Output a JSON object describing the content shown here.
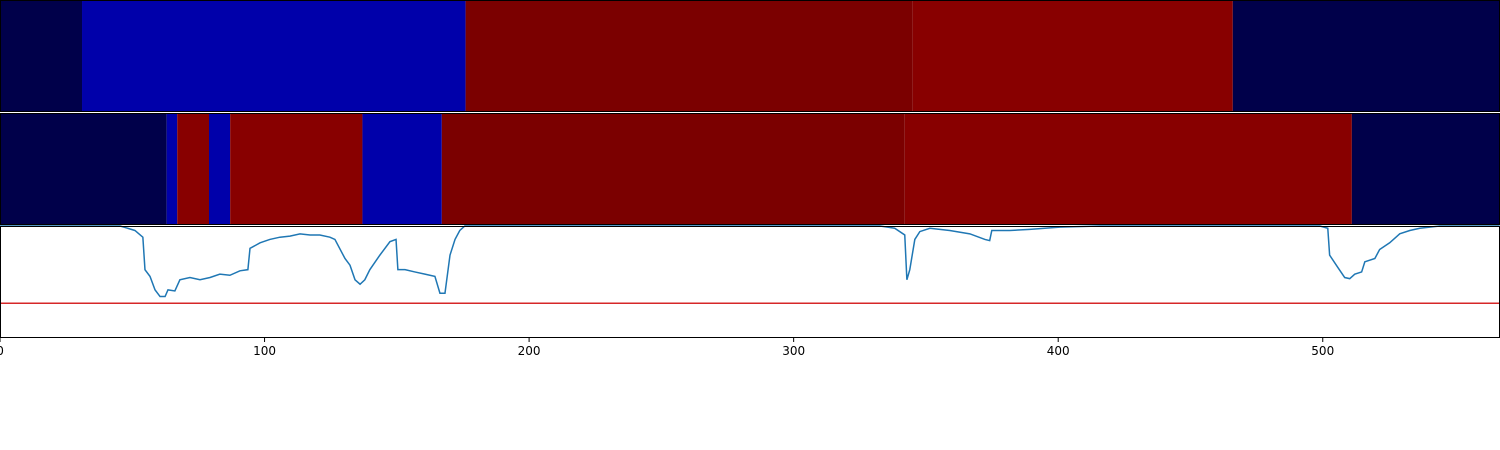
{
  "chart_data": [
    {
      "type": "segments",
      "xlim": [
        0,
        567
      ],
      "segments": [
        {
          "start": 0,
          "end": 31,
          "color": "#00004a"
        },
        {
          "start": 31,
          "end": 176,
          "color": "#0000aa"
        },
        {
          "start": 176,
          "end": 345,
          "color": "#7b0000"
        },
        {
          "start": 345,
          "end": 466,
          "color": "#880000"
        },
        {
          "start": 466,
          "end": 567,
          "color": "#00004a"
        }
      ]
    },
    {
      "type": "segments",
      "xlim": [
        0,
        567
      ],
      "segments": [
        {
          "start": 0,
          "end": 63,
          "color": "#00004a"
        },
        {
          "start": 63,
          "end": 67,
          "color": "#0000aa"
        },
        {
          "start": 67,
          "end": 79,
          "color": "#880000"
        },
        {
          "start": 79,
          "end": 87,
          "color": "#0000aa"
        },
        {
          "start": 87,
          "end": 137,
          "color": "#880000"
        },
        {
          "start": 137,
          "end": 167,
          "color": "#0000aa"
        },
        {
          "start": 167,
          "end": 342,
          "color": "#7b0000"
        },
        {
          "start": 342,
          "end": 511,
          "color": "#880000"
        },
        {
          "start": 511,
          "end": 567,
          "color": "#00004a"
        }
      ]
    },
    {
      "type": "line",
      "xlim": [
        0,
        567
      ],
      "ylim": [
        0,
        1
      ],
      "xticks": [
        0,
        100,
        200,
        300,
        400,
        500
      ],
      "threshold": 0.31,
      "threshold_color": "#d62728",
      "color": "#1f77b4",
      "x": [
        0,
        45.4,
        51,
        54,
        54.8,
        56.7,
        58.6,
        60.5,
        62.4,
        63.5,
        66.1,
        68,
        71.8,
        75.6,
        79.4,
        83.1,
        86.9,
        90.7,
        93.7,
        94.5,
        98.3,
        102,
        105.8,
        109.6,
        113.4,
        117.2,
        120.9,
        124.7,
        126.6,
        130.4,
        132.3,
        134.2,
        136.1,
        137.9,
        139.8,
        143.6,
        147.4,
        149.7,
        150.4,
        153.1,
        156.8,
        160.6,
        164.4,
        166.3,
        168.2,
        170.1,
        172,
        173.8,
        175.7,
        332.6,
        338.2,
        342,
        342.8,
        343.9,
        345.8,
        347.7,
        351.5,
        359,
        366.6,
        372.3,
        374.1,
        374.9,
        381.7,
        389.3,
        400.6,
        415.7,
        498.9,
        501.9,
        502.6,
        505.7,
        508.3,
        510.2,
        512.1,
        514.7,
        515.9,
        519.7,
        521.5,
        525.3,
        529.1,
        532.9,
        536.7,
        544.2,
        566.9
      ],
      "values": [
        1,
        1,
        0.96,
        0.9,
        0.61,
        0.55,
        0.43,
        0.37,
        0.37,
        0.43,
        0.42,
        0.52,
        0.54,
        0.52,
        0.54,
        0.57,
        0.56,
        0.6,
        0.61,
        0.8,
        0.85,
        0.88,
        0.9,
        0.91,
        0.93,
        0.92,
        0.92,
        0.9,
        0.88,
        0.71,
        0.65,
        0.52,
        0.48,
        0.52,
        0.61,
        0.74,
        0.86,
        0.88,
        0.61,
        0.61,
        0.59,
        0.57,
        0.55,
        0.4,
        0.4,
        0.74,
        0.88,
        0.96,
        1,
        1,
        0.98,
        0.92,
        0.52,
        0.61,
        0.88,
        0.95,
        0.98,
        0.96,
        0.93,
        0.88,
        0.87,
        0.96,
        0.96,
        0.97,
        0.99,
        1,
        1,
        0.98,
        0.74,
        0.63,
        0.54,
        0.53,
        0.57,
        0.59,
        0.68,
        0.71,
        0.79,
        0.85,
        0.93,
        0.96,
        0.98,
        1,
        1
      ]
    }
  ]
}
